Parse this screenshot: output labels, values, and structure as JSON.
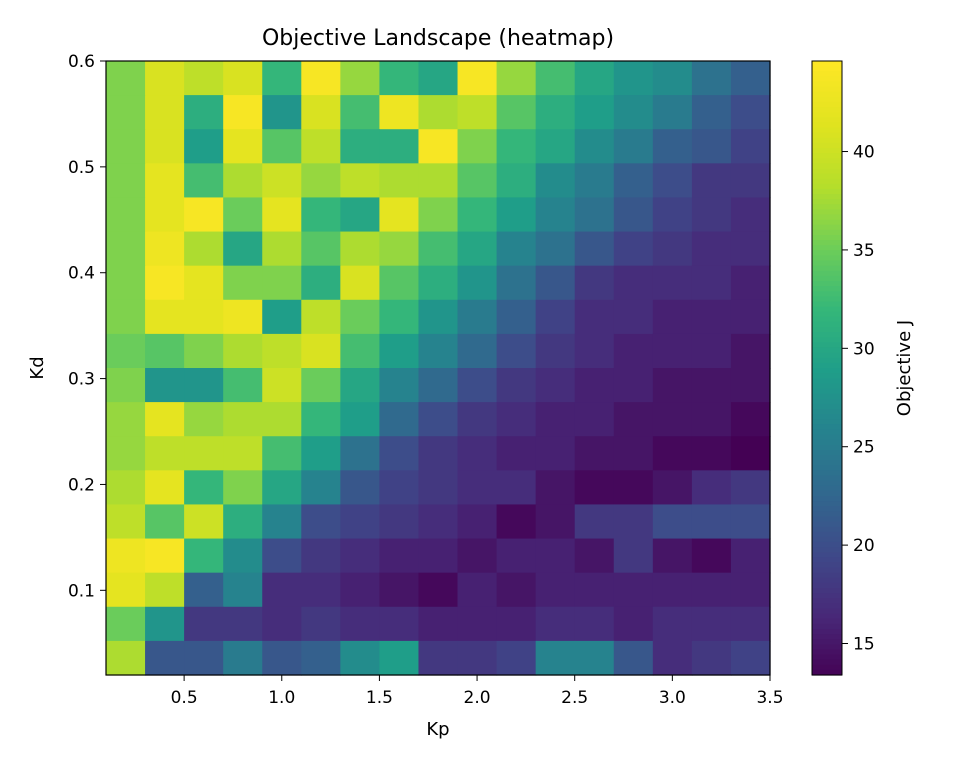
{
  "chart_data": {
    "type": "heatmap",
    "title": "Objective Landscape (heatmap)",
    "xlabel": "Kp",
    "ylabel": "Kd",
    "colorbar_label": "Objective J",
    "colormap": "viridis",
    "xlim": [
      0.1,
      3.5
    ],
    "ylim": [
      0.02,
      0.6
    ],
    "xticks": [
      0.5,
      1.0,
      1.5,
      2.0,
      2.5,
      3.0,
      3.5
    ],
    "xtick_labels": [
      "0.5",
      "1.0",
      "1.5",
      "2.0",
      "2.5",
      "3.0",
      "3.5"
    ],
    "yticks": [
      0.1,
      0.2,
      0.3,
      0.4,
      0.5,
      0.6
    ],
    "ytick_labels": [
      "0.1",
      "0.2",
      "0.3",
      "0.4",
      "0.5",
      "0.6"
    ],
    "colorbar_range": [
      13.4,
      44.6
    ],
    "colorbar_ticks": [
      15,
      20,
      25,
      30,
      35,
      40
    ],
    "colorbar_tick_labels": [
      "15",
      "20",
      "25",
      "30",
      "35",
      "40"
    ],
    "grid": false,
    "rows_note": "z rows listed from Kd=0.6 (top) down to Kd≈0.02 (bottom); 17 columns from Kp=0.1 to 3.5",
    "z": [
      [
        36,
        41,
        39,
        41,
        32,
        44,
        37,
        32,
        30,
        44,
        37,
        33,
        30,
        28,
        27,
        24,
        22
      ],
      [
        36,
        41,
        31,
        44,
        28,
        41,
        33,
        43,
        38,
        39,
        34,
        31,
        29,
        27,
        25,
        22,
        20
      ],
      [
        36,
        41,
        29,
        42,
        34,
        39,
        31,
        31,
        44,
        36,
        32,
        30,
        27,
        25,
        22,
        21,
        19
      ],
      [
        36,
        42,
        33,
        38,
        40,
        37,
        39,
        38,
        38,
        34,
        31,
        27,
        25,
        22,
        20,
        18,
        18
      ],
      [
        36,
        42,
        44,
        35,
        42,
        32,
        30,
        42,
        36,
        32,
        29,
        26,
        24,
        21,
        19,
        18,
        17
      ],
      [
        36,
        43,
        38,
        30,
        38,
        34,
        38,
        37,
        33,
        30,
        26,
        24,
        21,
        19,
        18,
        17,
        17
      ],
      [
        36,
        44,
        42,
        36,
        36,
        31,
        41,
        34,
        31,
        28,
        24,
        21,
        18,
        17,
        17,
        17,
        16
      ],
      [
        36,
        42,
        42,
        43,
        29,
        39,
        35,
        32,
        28,
        25,
        22,
        19,
        17,
        17,
        16,
        16,
        16
      ],
      [
        35,
        34,
        36,
        38,
        39,
        41,
        33,
        29,
        26,
        23,
        20,
        18,
        17,
        16,
        16,
        16,
        15
      ],
      [
        36,
        28,
        28,
        33,
        40,
        35,
        30,
        26,
        23,
        20,
        18,
        17,
        16,
        16,
        15,
        15,
        15
      ],
      [
        37,
        42,
        37,
        38,
        38,
        32,
        29,
        23,
        20,
        18,
        17,
        16,
        16,
        15,
        15,
        15,
        14
      ],
      [
        37,
        39,
        39,
        39,
        33,
        29,
        24,
        20,
        18,
        17,
        16,
        16,
        15,
        15,
        14,
        14,
        13.4
      ],
      [
        38,
        42,
        32,
        36,
        30,
        26,
        21,
        19,
        18,
        17,
        17,
        15,
        14,
        14,
        15,
        17,
        18
      ],
      [
        39,
        34,
        40,
        31,
        26,
        20,
        19,
        18,
        17,
        16,
        14,
        15,
        18,
        18,
        20,
        20,
        20
      ],
      [
        43,
        44,
        32,
        27,
        20,
        18,
        17,
        16,
        16,
        15,
        16,
        16,
        15,
        18,
        15,
        14,
        16
      ],
      [
        42,
        39,
        22,
        26,
        17,
        17,
        16,
        15,
        14,
        16,
        15,
        16,
        16,
        16,
        16,
        16,
        16
      ],
      [
        35,
        28,
        18,
        18,
        17,
        18,
        17,
        17,
        16,
        16,
        16,
        17,
        17,
        16,
        17,
        17,
        17
      ],
      [
        38,
        21,
        21,
        25,
        21,
        22,
        27,
        29,
        18,
        18,
        19,
        26,
        26,
        21,
        17,
        18,
        19
      ]
    ]
  }
}
